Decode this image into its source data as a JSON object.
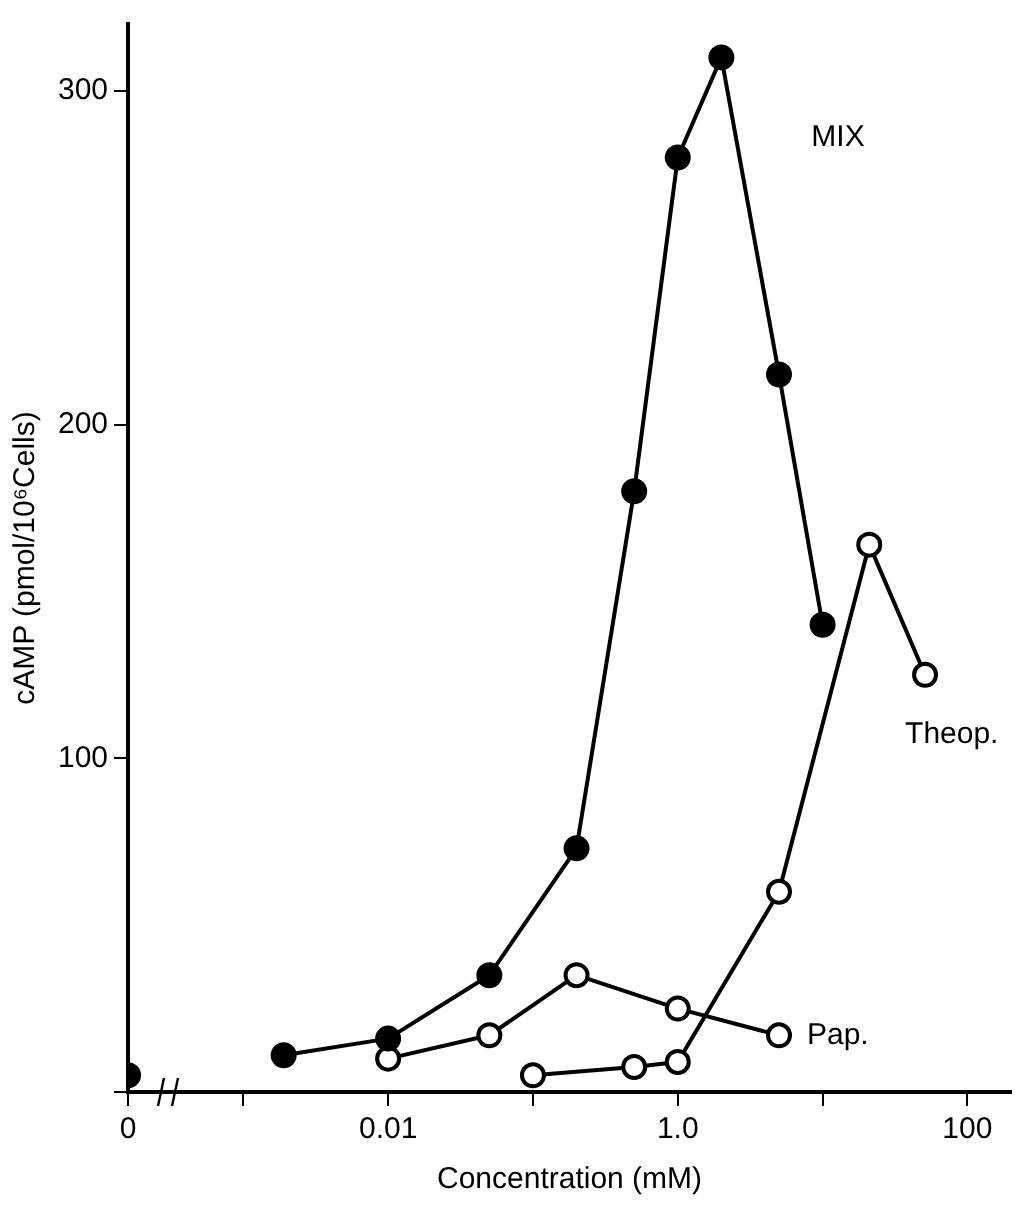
{
  "chart_data": {
    "type": "line",
    "xlabel": "Concentration (mM)",
    "ylabel": "cAMP (pmol/10⁶Cells)",
    "log": "x",
    "xlim": [
      0.00016,
      200
    ],
    "xticks": [
      {
        "value": 0.00016,
        "label": "0"
      },
      {
        "value": 0.001,
        "label": null
      },
      {
        "value": 0.01,
        "label": "0.01"
      },
      {
        "value": 0.1,
        "label": null
      },
      {
        "value": 1,
        "label": "1.0"
      },
      {
        "value": 10,
        "label": null
      },
      {
        "value": 100,
        "label": "100"
      }
    ],
    "ylim": [
      0,
      320
    ],
    "yticks": [
      {
        "value": 0,
        "label": null
      },
      100,
      200,
      300
    ],
    "grid": false,
    "legend": false,
    "marker": "circle",
    "line_style": "solid",
    "series": [
      {
        "name": "MIX",
        "color": "#000000",
        "x": [
          0.0019,
          0.01,
          0.05,
          0.2,
          0.5,
          1.0,
          2.0,
          5,
          10
        ],
        "values": [
          11,
          16,
          35,
          73,
          180,
          280,
          310,
          215,
          140
        ]
      },
      {
        "name": "Theop.",
        "color": "#000000",
        "x": [
          0.1,
          0.5,
          1.0,
          5,
          21,
          51
        ],
        "values": [
          5,
          7.5,
          9,
          60,
          164,
          125
        ]
      },
      {
        "name": "Pap.",
        "color": "#000000",
        "x": [
          0.01,
          0.05,
          0.2,
          1.0,
          5
        ],
        "values": [
          10,
          17,
          35,
          25,
          17
        ]
      },
      {
        "color": "#000000",
        "x": [
          0.00016
        ],
        "values": [
          5
        ]
      }
    ]
  }
}
